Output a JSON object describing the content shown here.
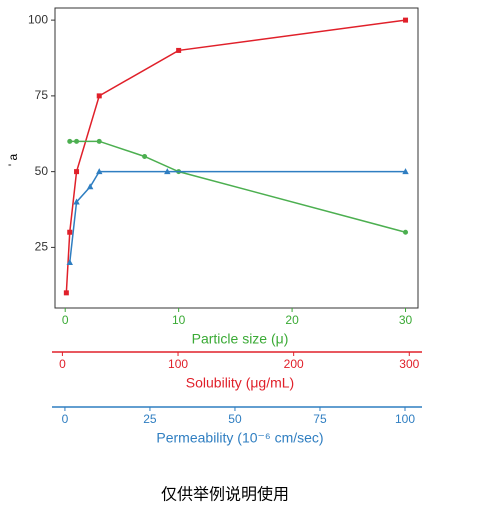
{
  "chart_data": {
    "type": "line",
    "ylabel": "' a",
    "ylim": [
      5,
      104
    ],
    "yticks": [
      25,
      50,
      75,
      100
    ],
    "xlabel": "Particle size (μ)",
    "xcolor": "#3aaa35",
    "xlim": [
      -0.9,
      31.1
    ],
    "xticks": [
      0,
      10,
      20,
      30
    ],
    "extra_axes": [
      {
        "label": "Solubility (μg/mL)",
        "color": "#e0202a",
        "lim": [
          -9,
          311
        ],
        "ticks": [
          0,
          100,
          200,
          300
        ]
      },
      {
        "label": "Permeability (10⁻⁶ cm/sec)",
        "color": "#2f7ec1",
        "lim": [
          -3.8,
          105
        ],
        "ticks": [
          0,
          25,
          50,
          75,
          100
        ]
      }
    ],
    "series": [
      {
        "color": "#e0202a",
        "marker": "square",
        "x": [
          0.1,
          0.4,
          1,
          3,
          10,
          30
        ],
        "values": [
          10,
          30,
          50,
          75,
          90,
          100
        ]
      },
      {
        "color": "#4caf50",
        "marker": "circle",
        "x": [
          0.4,
          1,
          3,
          7,
          10,
          30
        ],
        "values": [
          60,
          60,
          60,
          55,
          50,
          30
        ]
      },
      {
        "color": "#2f7ec1",
        "marker": "triangle",
        "x": [
          0.4,
          1,
          2.2,
          3,
          9,
          30
        ],
        "values": [
          20,
          40,
          45,
          50,
          50,
          50
        ]
      }
    ],
    "caption": "仅供举例说明使用"
  }
}
